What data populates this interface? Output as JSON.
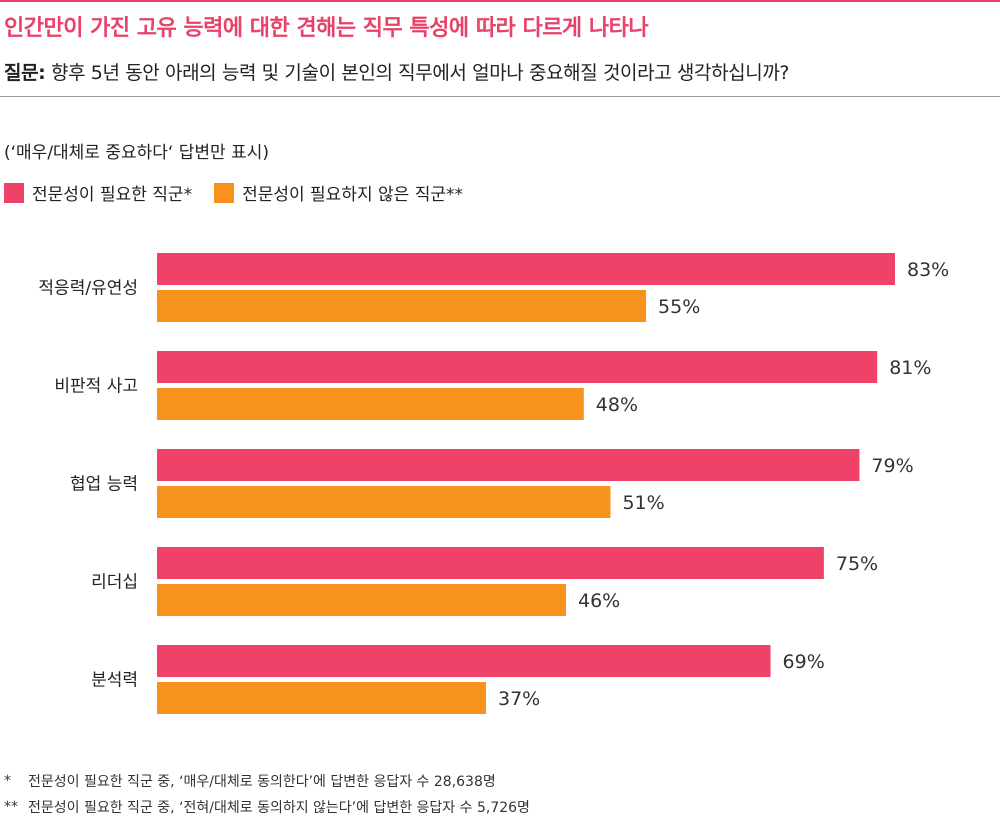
{
  "title": "인간만이 가진 고유 능력에 대한 견해는 직무 특성에 따라 다르게 나타나",
  "question": {
    "label": "질문:",
    "text": "향후 5년 동안 아래의 능력 및 기술이 본인의 직무에서 얼마나 중요해질 것이라고 생각하십니까?"
  },
  "note": "(‘매우/대체로 중요하다‘ 답변만 표시)",
  "colors": {
    "accent": "#e8426a",
    "series1": "#f04268",
    "series2": "#f7921e"
  },
  "legend": [
    {
      "label": "전문성이 필요한 직군*",
      "color": "#f04268"
    },
    {
      "label": "전문성이 필요하지 않은 직군**",
      "color": "#f7921e"
    }
  ],
  "chart_data": {
    "type": "bar",
    "orientation": "horizontal",
    "categories": [
      "적응력/유연성",
      "비판적 사고",
      "협업 능력",
      "리더십",
      "분석력"
    ],
    "series": [
      {
        "name": "전문성이 필요한 직군*",
        "values": [
          83,
          81,
          79,
          75,
          69
        ],
        "labels": [
          "83%",
          "81%",
          "79%",
          "75%",
          "69%"
        ],
        "color": "#f04268"
      },
      {
        "name": "전문성이 필요하지 않은 직군**",
        "values": [
          55,
          48,
          51,
          46,
          37
        ],
        "labels": [
          "55%",
          "48%",
          "51%",
          "46%",
          "37%"
        ],
        "color": "#f7921e"
      }
    ],
    "xlim": [
      0,
      100
    ],
    "unit": "%",
    "grid": false,
    "legend_position": "top-left"
  },
  "footnotes": [
    {
      "mark": "*",
      "text": "전문성이 필요한 직군 중, ‘매우/대체로 동의한다’에 답변한 응답자 수 28,638명"
    },
    {
      "mark": "**",
      "text": "전문성이 필요한 직군 중, ‘전혀/대체로 동의하지 않는다’에 답변한 응답자 수 5,726명"
    }
  ]
}
